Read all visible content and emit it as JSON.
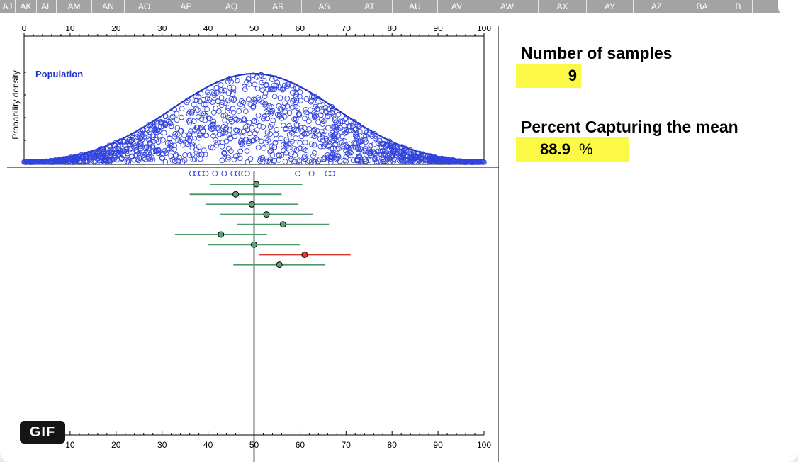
{
  "column_headers": [
    "AJ",
    "AK",
    "AL",
    "AM",
    "AN",
    "AO",
    "AP",
    "AQ",
    "AR",
    "AS",
    "AT",
    "AU",
    "AV",
    "AW",
    "AX",
    "AY",
    "AZ",
    "BA",
    "B"
  ],
  "panel": {
    "samples_title": "Number of samples",
    "samples_value": "9",
    "percent_title": "Percent Capturing the mean",
    "percent_value": "88.9",
    "percent_unit": "%"
  },
  "badge": {
    "label": "GIF"
  },
  "chart_data": {
    "type": "scatter",
    "top_panel": {
      "title": "Population",
      "ylabel": "Probability density",
      "xlim": [
        0,
        100
      ],
      "ticks": [
        0,
        10,
        20,
        30,
        40,
        50,
        60,
        70,
        80,
        90,
        100
      ],
      "tick_labels": [
        "0",
        "10",
        "20",
        "30",
        "40",
        "50",
        "60",
        "70",
        "80",
        "90",
        "100"
      ],
      "distribution": {
        "mean": 50,
        "sd": 18
      },
      "colors": {
        "curve": "#2233cc",
        "points": "#3344dd"
      }
    },
    "sample_points": [
      36.5,
      37.5,
      38.5,
      39.5,
      41.5,
      43.5,
      45.5,
      46.5,
      47.2,
      47.8,
      48.5,
      59.5,
      62.5,
      66,
      67
    ],
    "intervals": [
      {
        "mean": 50.5,
        "low": 40.5,
        "high": 60.5,
        "captures": true
      },
      {
        "mean": 46.0,
        "low": 36.0,
        "high": 56.0,
        "captures": true
      },
      {
        "mean": 49.5,
        "low": 39.5,
        "high": 59.5,
        "captures": true
      },
      {
        "mean": 52.7,
        "low": 42.7,
        "high": 62.7,
        "captures": true
      },
      {
        "mean": 56.3,
        "low": 46.3,
        "high": 66.3,
        "captures": true
      },
      {
        "mean": 42.8,
        "low": 32.8,
        "high": 52.8,
        "captures": true
      },
      {
        "mean": 50.0,
        "low": 40.0,
        "high": 60.0,
        "captures": true
      },
      {
        "mean": 61.0,
        "low": 51.0,
        "high": 71.0,
        "captures": false
      },
      {
        "mean": 55.5,
        "low": 45.5,
        "high": 65.5,
        "captures": true
      }
    ],
    "bottom_axis": {
      "ticks": [
        10,
        20,
        30,
        40,
        50,
        60,
        70,
        80,
        90,
        100
      ],
      "tick_labels": [
        "10",
        "20",
        "30",
        "40",
        "50",
        "60",
        "70",
        "80",
        "90",
        "100"
      ]
    },
    "population_mean": 50,
    "colors": {
      "capture": "#4c9a6a",
      "miss": "#d33a2c",
      "dot_capture": "#5fa27a",
      "dot_miss": "#e23b30"
    }
  }
}
